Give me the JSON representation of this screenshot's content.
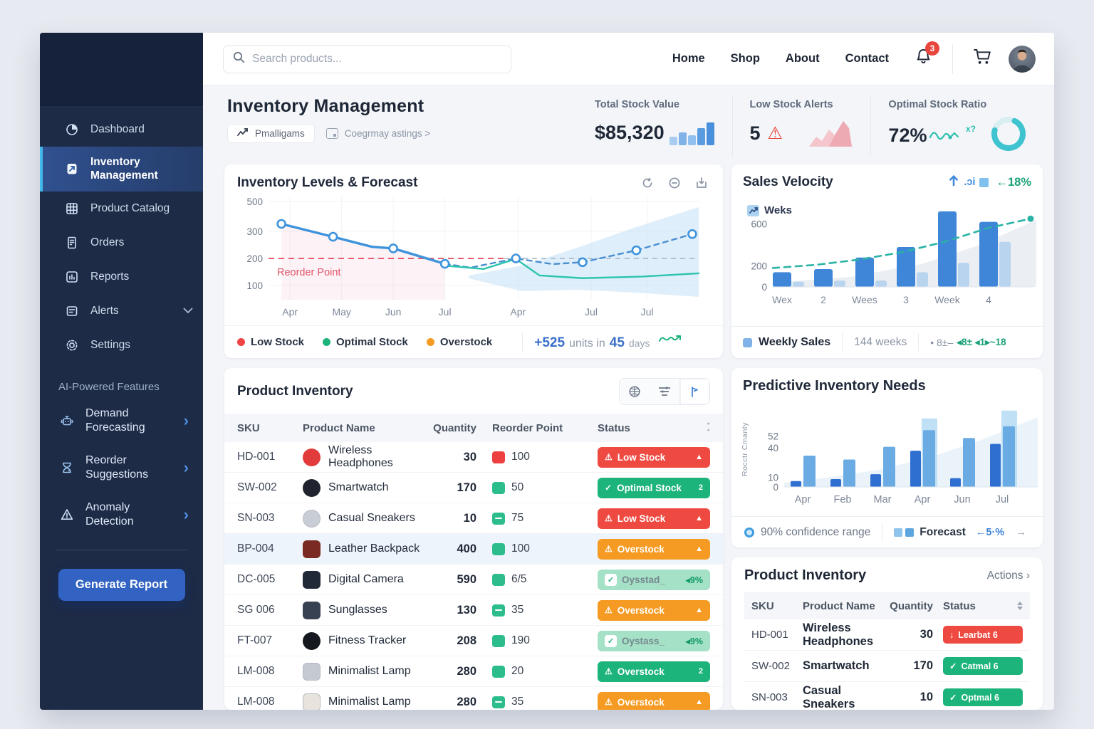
{
  "topbar": {
    "search_placeholder": "Search products...",
    "nav": [
      {
        "label": "Home"
      },
      {
        "label": "Shop"
      },
      {
        "label": "About"
      },
      {
        "label": "Contact"
      }
    ],
    "notification_count": "3"
  },
  "sidebar": {
    "items": [
      {
        "label": "Dashboard",
        "icon": "dashboard-icon",
        "active": false
      },
      {
        "label": "Inventory Management",
        "icon": "inventory-icon",
        "active": true
      },
      {
        "label": "Product Catalog",
        "icon": "catalog-icon",
        "active": false
      },
      {
        "label": "Orders",
        "icon": "orders-icon",
        "active": false
      },
      {
        "label": "Reports",
        "icon": "reports-icon",
        "active": false
      },
      {
        "label": "Alerts",
        "icon": "alerts-icon",
        "active": false,
        "chevron": true
      },
      {
        "label": "Settings",
        "icon": "settings-icon",
        "active": false
      }
    ],
    "section_title": "AI-Powered Features",
    "ai_items": [
      {
        "label": "Demand Forecasting",
        "icon": "forecasting-icon"
      },
      {
        "label": "Reorder Suggestions",
        "icon": "reorder-icon"
      },
      {
        "label": "Anomaly Detection",
        "icon": "anomaly-icon"
      }
    ],
    "generate_report_label": "Generate Report"
  },
  "header": {
    "title": "Inventory Management",
    "chip_primary": "Pmalligams",
    "chip_secondary": "Coegrmay astings >",
    "stats": [
      {
        "label": "Total Stock Value",
        "value": "$85,320",
        "viz": "bars"
      },
      {
        "label": "Low Stock Alerts",
        "value": "5",
        "viz": "area",
        "alert": true
      },
      {
        "label": "Optimal Stock Ratio",
        "value": "72%",
        "viz": "donut"
      }
    ]
  },
  "forecast_card": {
    "title": "Inventory Levels & Forecast",
    "reorder_point_label": "Reorder Point",
    "legend": [
      {
        "label": "Low Stock",
        "color": "#ef4444"
      },
      {
        "label": "Optimal Stock",
        "color": "#1db47c"
      },
      {
        "label": "Overstock",
        "color": "#f59b23"
      }
    ],
    "units_highlight_1": "+525",
    "units_text_1": "units in",
    "units_highlight_2": "45",
    "units_text_2": "days"
  },
  "sales_card": {
    "title": "Sales Velocity",
    "header_garble": ".ɔi",
    "header_pct": "←18%",
    "chip_label": "Weks",
    "footer_legend": "Weekly Sales",
    "footer_weeks": "144 weeks",
    "footer_garble_gray": "• 8±–",
    "footer_garble_teal": "◂8± ◂1▸~18"
  },
  "inventory_table": {
    "title": "Product Inventory",
    "columns": [
      "SKU",
      "Product Name",
      "Quantity",
      "Reorder Point",
      "Status"
    ],
    "rows": [
      {
        "sku": "HD-001",
        "name": "Wireless Headphones",
        "qty": "30",
        "rp": "100",
        "rp_variant": "red",
        "badge_label": "Low Stock",
        "badge_variant": "red",
        "badge_icon": "⚠",
        "badge_suffix": "▲",
        "icon_color": "#e23b3b",
        "icon_shape": "circle",
        "highlight": false
      },
      {
        "sku": "SW-002",
        "name": "Smartwatch",
        "qty": "170",
        "rp": "50",
        "rp_variant": "green",
        "badge_label": "Optimal Stock",
        "badge_variant": "green",
        "badge_icon": "✓",
        "badge_suffix": "2",
        "icon_color": "#1f242e",
        "icon_shape": "circle",
        "highlight": false
      },
      {
        "sku": "SN-003",
        "name": "Casual Sneakers",
        "qty": "10",
        "rp": "75",
        "rp_variant": "green-minus",
        "badge_label": "Low Stock",
        "badge_variant": "red",
        "badge_icon": "⚠",
        "badge_suffix": "▲",
        "icon_color": "#c9ced6",
        "icon_shape": "circle",
        "highlight": false
      },
      {
        "sku": "BP-004",
        "name": "Leather Backpack",
        "qty": "400",
        "rp": "100",
        "rp_variant": "green",
        "badge_label": "Overstock",
        "badge_variant": "orange",
        "badge_icon": "⚠",
        "badge_suffix": "▲",
        "icon_color": "#7a2a22",
        "icon_shape": "square",
        "highlight": true
      },
      {
        "sku": "DC-005",
        "name": "Digital Camera",
        "qty": "590",
        "rp": "6/5",
        "rp_variant": "green",
        "badge_label": "Oysstad_",
        "badge_variant": "mint",
        "badge_icon": "✓",
        "badge_suffix": "◂9%",
        "icon_color": "#1f2937",
        "icon_shape": "square",
        "highlight": false
      },
      {
        "sku": "SG 006",
        "name": "Sunglasses",
        "qty": "130",
        "rp": "35",
        "rp_variant": "green-minus",
        "badge_label": "Overstock",
        "badge_variant": "orange",
        "badge_icon": "⚠",
        "badge_suffix": "▲",
        "icon_color": "#374151",
        "icon_shape": "square",
        "highlight": false
      },
      {
        "sku": "FT-007",
        "name": "Fitness Tracker",
        "qty": "208",
        "rp": "190",
        "rp_variant": "green",
        "badge_label": "Oystass_",
        "badge_variant": "mint",
        "badge_icon": "✓",
        "badge_suffix": "◂9%",
        "icon_color": "#15181f",
        "icon_shape": "circle",
        "highlight": false
      },
      {
        "sku": "LM-008",
        "name": "Minimalist Lamp",
        "qty": "280",
        "rp": "20",
        "rp_variant": "green",
        "badge_label": "Overstock",
        "badge_variant": "green",
        "badge_icon": "⚠",
        "badge_suffix": "2",
        "icon_color": "#c5cad2",
        "icon_shape": "square",
        "highlight": false
      },
      {
        "sku": "LM-008",
        "name": "Minimalist Lamp",
        "qty": "280",
        "rp": "35",
        "rp_variant": "green-minus",
        "badge_label": "Overstock",
        "badge_variant": "orange",
        "badge_icon": "⚠",
        "badge_suffix": "▲",
        "icon_color": "#e8e4dd",
        "icon_shape": "square",
        "highlight": false
      }
    ]
  },
  "predictive_card": {
    "title": "Predictive Inventory Needs",
    "y_axis_label": "Rocctr Cmanty",
    "footer_conf": "90% confidence range",
    "footer_forecast": "Forecast",
    "footer_pct": "←5·%",
    "footer_arrow": "→"
  },
  "mini_table": {
    "title": "Product Inventory",
    "action_label": "Actions ›",
    "columns": [
      "SKU",
      "Product Name",
      "Quantity",
      "Status"
    ],
    "rows": [
      {
        "sku": "HD-001",
        "name": "Wireless Headphones",
        "qty": "30",
        "badge_label": "Learbat 6",
        "badge_variant": "red",
        "badge_icon": "↓"
      },
      {
        "sku": "SW-002",
        "name": "Smartwatch",
        "qty": "170",
        "badge_label": "Catmal 6",
        "badge_variant": "green",
        "badge_icon": "✓"
      },
      {
        "sku": "SN-003",
        "name": "Casual Sneakers",
        "qty": "10",
        "badge_label": "Optmal 6",
        "badge_variant": "green",
        "badge_icon": "✓"
      }
    ]
  },
  "chart_data": [
    {
      "name": "inventory_forecast",
      "type": "line",
      "title": "Inventory Levels & Forecast",
      "ylim": [
        0,
        500
      ],
      "yticks": [
        500,
        300,
        200,
        100
      ],
      "xticks": [
        "Apr",
        "May",
        "Jun",
        "Jul",
        "Apr",
        "Jul",
        "Jul"
      ],
      "xtick_pos": [
        0.05,
        0.17,
        0.29,
        0.41,
        0.58,
        0.75,
        0.88
      ],
      "reorder_point": 200,
      "series": [
        {
          "name": "actual",
          "style": "solid",
          "color": "#3e93dc",
          "points": [
            [
              0.03,
              350
            ],
            [
              0.15,
              280
            ],
            [
              0.24,
              243
            ],
            [
              0.29,
              237
            ],
            [
              0.41,
              180
            ]
          ],
          "markers": [
            [
              0.03,
              350
            ],
            [
              0.15,
              280
            ],
            [
              0.29,
              237
            ],
            [
              0.41,
              180
            ]
          ]
        },
        {
          "name": "forecast",
          "style": "dashed",
          "color": "#4a8fd0",
          "points": [
            [
              0.41,
              180
            ],
            [
              0.47,
              166
            ],
            [
              0.575,
              200
            ],
            [
              0.66,
              179
            ],
            [
              0.73,
              186
            ],
            [
              0.855,
              230
            ],
            [
              0.985,
              290
            ]
          ],
          "markers": [
            [
              0.575,
              200
            ],
            [
              0.73,
              186
            ],
            [
              0.855,
              230
            ],
            [
              0.985,
              290
            ]
          ]
        },
        {
          "name": "optimal",
          "style": "solid",
          "color": "#2cc4b0",
          "points": [
            [
              0.42,
              172
            ],
            [
              0.5,
              161
            ],
            [
              0.575,
              198
            ],
            [
              0.63,
              137
            ],
            [
              0.73,
              127
            ],
            [
              0.87,
              133
            ],
            [
              1.0,
              145
            ]
          ]
        }
      ],
      "annotation": "+525 units in 45 days"
    },
    {
      "name": "sales_velocity",
      "type": "bar",
      "categories": [
        "Wex",
        "2",
        "Wees",
        "3",
        "Week",
        "4"
      ],
      "yticks": [
        600,
        200,
        0
      ],
      "ylim": [
        0,
        760
      ],
      "series": [
        {
          "name": "Weekly Sales",
          "color": "#3f86d8",
          "values": [
            140,
            170,
            280,
            380,
            720,
            620
          ]
        },
        {
          "name": "secondary",
          "color": "#b9d4ee",
          "values": [
            50,
            60,
            60,
            140,
            230,
            430
          ]
        }
      ],
      "trend": {
        "style": "dashed",
        "color": "#2ab3a6",
        "values": [
          180,
          210,
          260,
          330,
          430,
          560,
          650
        ]
      },
      "change_pct": "+18%",
      "weeks_note": "144 weeks"
    },
    {
      "name": "predictive_needs",
      "type": "bar",
      "categories": [
        "Apr",
        "Feb",
        "Mar",
        "Apr",
        "Jun",
        "Jul"
      ],
      "yticks": [
        52,
        40,
        10,
        0
      ],
      "ylim": [
        0,
        80
      ],
      "series": [
        {
          "name": "dark",
          "color": "#2f6fd0",
          "values": [
            6,
            8,
            13,
            37,
            9,
            44
          ]
        },
        {
          "name": "medium",
          "color": "#6babe4",
          "values": [
            32,
            28,
            41,
            58,
            50,
            62
          ]
        },
        {
          "name": "light",
          "color": "#bfe0f5",
          "values": [
            0,
            0,
            0,
            70,
            0,
            78
          ]
        }
      ],
      "legend": [
        "90% confidence range",
        "Forecast"
      ]
    }
  ]
}
